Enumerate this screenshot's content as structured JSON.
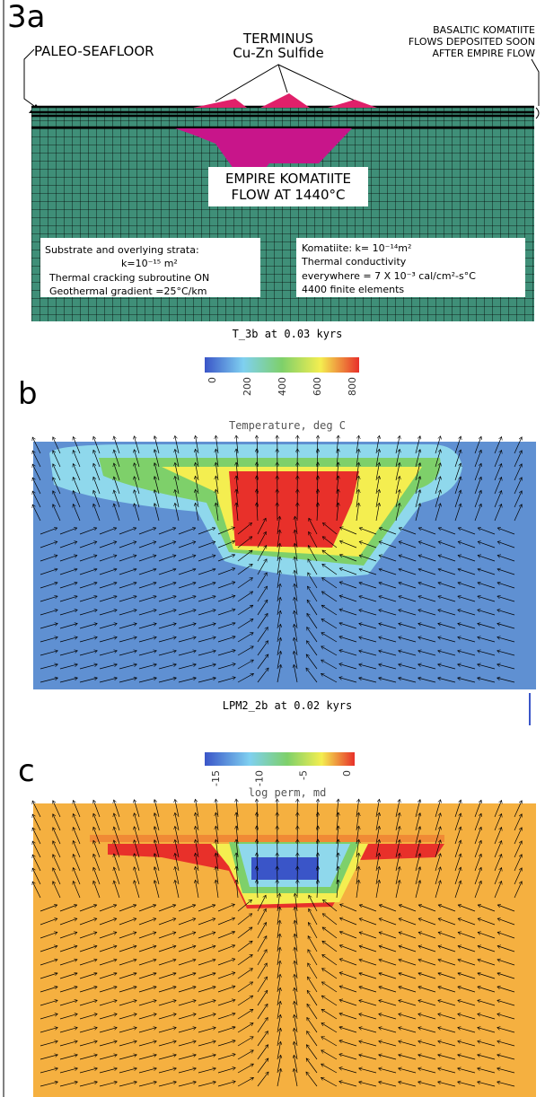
{
  "panel_a": {
    "label": "3a",
    "paleo_seafloor": "PALEO-SEAFLOOR",
    "terminus": [
      "TERMINUS",
      "Cu-Zn Sulfide"
    ],
    "basaltic": [
      "BASALTIC KOMATIITE",
      "FLOWS DEPOSITED SOON",
      "AFTER EMPIRE FLOW"
    ],
    "empire": [
      "EMPIRE KOMATIITE",
      "FLOW AT 1440°C"
    ],
    "box_left": [
      "Substrate and overlying strata:",
      "k=10⁻¹⁵ m²",
      "Thermal cracking subroutine ON",
      "Geothermal gradient =25°C/km"
    ],
    "box_right": [
      "Komatiite: k= 10⁻¹⁴m²",
      "Thermal conductivity",
      "everywhere = 7 X 10⁻³  cal/cm²-s°C",
      "4400 finite elements"
    ],
    "caption": "T_3b at  0.03 kyrs"
  },
  "panel_b": {
    "label": "b",
    "colorbar_ticks": [
      0,
      200,
      400,
      600,
      800
    ],
    "colorbar_title": "Temperature, deg C",
    "caption": "LPM2_2b at  0.02 kyrs"
  },
  "panel_c": {
    "label": "c",
    "colorbar_ticks": [
      -15,
      -10,
      -5,
      0
    ],
    "colorbar_title": "log perm, md"
  }
}
